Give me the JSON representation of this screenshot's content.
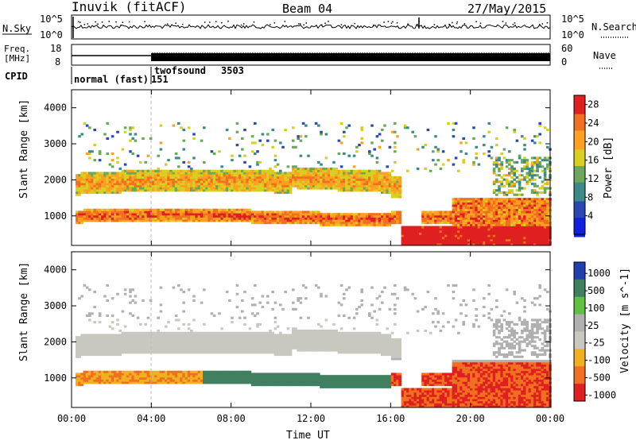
{
  "header": {
    "station": "Inuvik (fitACF)",
    "beam": "Beam 04",
    "date": "27/May/2015"
  },
  "noise_panel": {
    "left_label": "N.Sky",
    "left_ticks": [
      "10^5",
      "10^0"
    ],
    "right_label": "N.Search",
    "right_ticks": [
      "10^5",
      "10^0"
    ]
  },
  "freq_panel": {
    "left_label_line1": "Freq.",
    "left_label_line2": "[MHz]",
    "left_ticks": [
      "18",
      "8"
    ],
    "right_label": "Nave",
    "right_ticks": [
      "60",
      "0"
    ]
  },
  "cpid_panel": {
    "label": "CPID",
    "modes": [
      {
        "name": "normal (fast)",
        "id": "151"
      },
      {
        "name": "twofsound",
        "id": "3503"
      }
    ]
  },
  "colors": {
    "power": [
      "#1020e0",
      "#2a48b0",
      "#3d8a8a",
      "#6aa85a",
      "#d8d020",
      "#ffa020",
      "#f07020",
      "#e02020"
    ],
    "velocity": [
      "#2040b0",
      "#408060",
      "#60c040",
      "#b0b0b0",
      "#c8c8c0",
      "#f0b020",
      "#f07020",
      "#e02020"
    ]
  },
  "chart_data": [
    {
      "type": "heatmap",
      "name": "power",
      "xlabel": "",
      "ylabel": "Slant Range [km]",
      "xlim": [
        "00:00",
        "24:00"
      ],
      "ylim": [
        180,
        4500
      ],
      "yticks": [
        "1000",
        "2000",
        "3000",
        "4000"
      ],
      "colorbar": {
        "label": "Power [dB]",
        "ticks": [
          "4",
          "8",
          "12",
          "16",
          "20",
          "24",
          "28"
        ],
        "range": [
          0,
          30
        ]
      }
    },
    {
      "type": "heatmap",
      "name": "velocity",
      "xlabel": "Time UT",
      "ylabel": "Slant Range [km]",
      "xlim": [
        "00:00",
        "24:00"
      ],
      "ylim": [
        180,
        4500
      ],
      "xticks": [
        "00:00",
        "04:00",
        "08:00",
        "12:00",
        "16:00",
        "20:00",
        "00:00"
      ],
      "yticks": [
        "1000",
        "2000",
        "3000",
        "4000"
      ],
      "colorbar": {
        "label": "Velocity [m s^-1]",
        "ticks": [
          "1000",
          "500",
          "100",
          "25",
          "-25",
          "-100",
          "-500",
          "-1000"
        ]
      }
    }
  ]
}
